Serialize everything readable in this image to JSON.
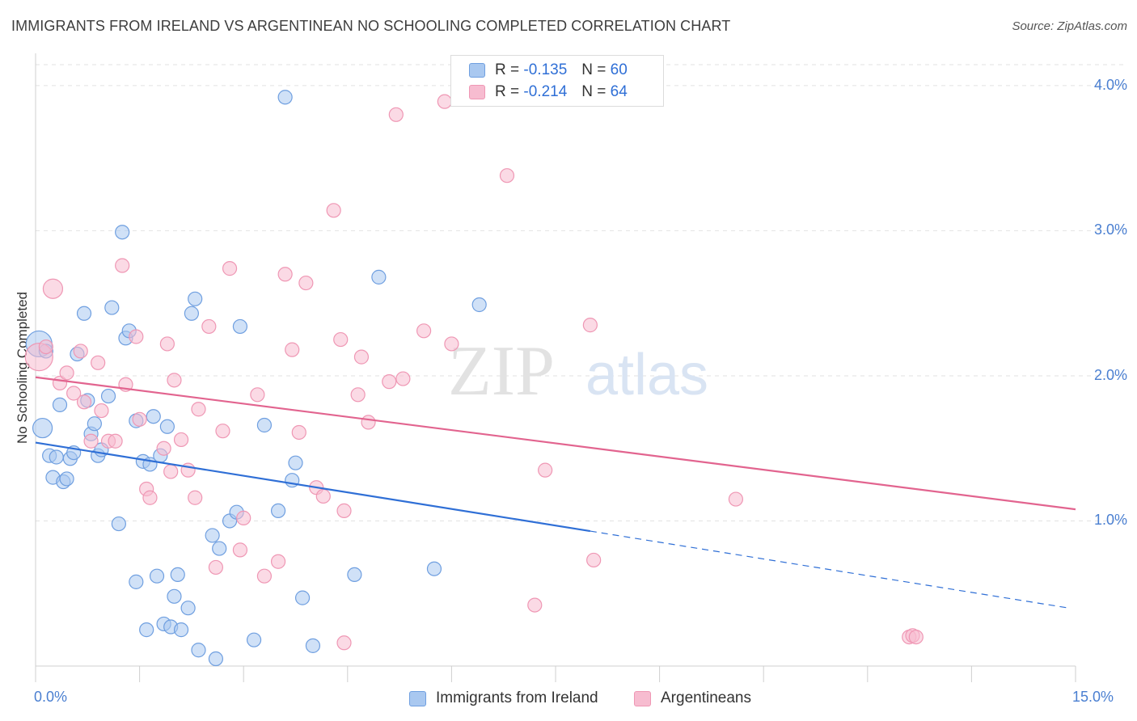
{
  "header": {
    "title": "IMMIGRANTS FROM IRELAND VS ARGENTINEAN NO SCHOOLING COMPLETED CORRELATION CHART",
    "source": "Source: ZipAtlas.com"
  },
  "watermark": {
    "zip": "ZIP",
    "atlas": "atlas"
  },
  "legend_top": {
    "r_label": "R =",
    "n_label": "N =",
    "series1": {
      "r": "-0.135",
      "n": "60"
    },
    "series2": {
      "r": "-0.214",
      "n": "64"
    }
  },
  "colors": {
    "ireland_fill": "#a9c8f0",
    "ireland_stroke": "#6f9fe0",
    "ireland_line": "#2f6fd6",
    "argentina_fill": "#f7bcd0",
    "argentina_stroke": "#ef97b4",
    "argentina_line": "#e2648f",
    "axis_text": "#4a7fd1",
    "grid": "#e2e2e2"
  },
  "chart_data": {
    "type": "scatter",
    "title": "IMMIGRANTS FROM IRELAND VS ARGENTINEAN NO SCHOOLING COMPLETED CORRELATION CHART",
    "xlabel": "",
    "ylabel": "No Schooling Completed",
    "xlim": [
      0,
      15
    ],
    "ylim": [
      0,
      4.2
    ],
    "x_tick_labels": [
      "0.0%",
      "15.0%"
    ],
    "y_ticks": [
      1,
      2,
      3,
      4
    ],
    "y_tick_labels": [
      "1.0%",
      "2.0%",
      "3.0%",
      "4.0%"
    ],
    "grid": true,
    "legend_position": "bottom-center",
    "series": [
      {
        "name": "Immigrants from Ireland",
        "r": -0.135,
        "n": 60,
        "trend": {
          "x0": 0,
          "y0": 1.54,
          "x1": 8.0,
          "y1": 0.93,
          "dashed_to_x": 14.9,
          "dashed_to_y": 0.4
        },
        "points": [
          [
            0.05,
            2.22
          ],
          [
            0.1,
            1.64
          ],
          [
            0.15,
            2.17
          ],
          [
            0.2,
            1.45
          ],
          [
            0.25,
            1.3
          ],
          [
            0.3,
            1.44
          ],
          [
            0.35,
            1.8
          ],
          [
            0.4,
            1.27
          ],
          [
            0.45,
            1.29
          ],
          [
            0.5,
            1.43
          ],
          [
            0.55,
            1.47
          ],
          [
            0.6,
            2.15
          ],
          [
            0.7,
            2.43
          ],
          [
            0.75,
            1.83
          ],
          [
            0.8,
            1.6
          ],
          [
            0.85,
            1.67
          ],
          [
            0.9,
            1.45
          ],
          [
            0.95,
            1.49
          ],
          [
            1.05,
            1.86
          ],
          [
            1.1,
            2.47
          ],
          [
            1.2,
            0.98
          ],
          [
            1.25,
            2.99
          ],
          [
            1.3,
            2.26
          ],
          [
            1.35,
            2.31
          ],
          [
            1.45,
            1.69
          ],
          [
            1.45,
            0.58
          ],
          [
            1.55,
            1.41
          ],
          [
            1.6,
            0.25
          ],
          [
            1.65,
            1.39
          ],
          [
            1.7,
            1.72
          ],
          [
            1.75,
            0.62
          ],
          [
            1.8,
            1.45
          ],
          [
            1.85,
            0.29
          ],
          [
            1.9,
            1.65
          ],
          [
            1.95,
            0.27
          ],
          [
            2.0,
            0.48
          ],
          [
            2.05,
            0.63
          ],
          [
            2.1,
            0.25
          ],
          [
            2.2,
            0.4
          ],
          [
            2.25,
            2.43
          ],
          [
            2.3,
            2.53
          ],
          [
            2.35,
            0.11
          ],
          [
            2.55,
            0.9
          ],
          [
            2.6,
            0.05
          ],
          [
            2.65,
            0.81
          ],
          [
            2.8,
            1.0
          ],
          [
            2.9,
            1.06
          ],
          [
            2.95,
            2.34
          ],
          [
            3.15,
            0.18
          ],
          [
            3.3,
            1.66
          ],
          [
            3.5,
            1.07
          ],
          [
            3.6,
            3.92
          ],
          [
            3.7,
            1.28
          ],
          [
            3.75,
            1.4
          ],
          [
            3.85,
            0.47
          ],
          [
            4.0,
            0.14
          ],
          [
            4.6,
            0.63
          ],
          [
            4.95,
            2.68
          ],
          [
            5.75,
            0.67
          ],
          [
            6.4,
            2.49
          ]
        ]
      },
      {
        "name": "Argentineans",
        "r": -0.214,
        "n": 64,
        "trend": {
          "x0": 0,
          "y0": 1.99,
          "x1": 15.0,
          "y1": 1.08
        },
        "points": [
          [
            0.05,
            2.13
          ],
          [
            0.15,
            2.2
          ],
          [
            0.25,
            2.6
          ],
          [
            0.35,
            1.95
          ],
          [
            0.45,
            2.02
          ],
          [
            0.55,
            1.88
          ],
          [
            0.65,
            2.17
          ],
          [
            0.7,
            1.82
          ],
          [
            0.8,
            1.55
          ],
          [
            0.9,
            2.09
          ],
          [
            0.95,
            1.76
          ],
          [
            1.05,
            1.55
          ],
          [
            1.15,
            1.55
          ],
          [
            1.25,
            2.76
          ],
          [
            1.3,
            1.94
          ],
          [
            1.45,
            2.27
          ],
          [
            1.5,
            1.7
          ],
          [
            1.6,
            1.22
          ],
          [
            1.65,
            1.16
          ],
          [
            1.85,
            1.5
          ],
          [
            1.9,
            2.22
          ],
          [
            1.95,
            1.34
          ],
          [
            2.0,
            1.97
          ],
          [
            2.1,
            1.56
          ],
          [
            2.2,
            1.35
          ],
          [
            2.3,
            1.16
          ],
          [
            2.35,
            1.77
          ],
          [
            2.5,
            2.34
          ],
          [
            2.6,
            0.68
          ],
          [
            2.7,
            1.62
          ],
          [
            2.8,
            2.74
          ],
          [
            2.95,
            0.8
          ],
          [
            3.0,
            1.02
          ],
          [
            3.2,
            1.87
          ],
          [
            3.3,
            0.62
          ],
          [
            3.5,
            0.72
          ],
          [
            3.6,
            2.7
          ],
          [
            3.7,
            2.18
          ],
          [
            3.8,
            1.61
          ],
          [
            3.9,
            2.64
          ],
          [
            4.05,
            1.23
          ],
          [
            4.15,
            1.17
          ],
          [
            4.3,
            3.14
          ],
          [
            4.4,
            2.25
          ],
          [
            4.45,
            1.07
          ],
          [
            4.45,
            0.16
          ],
          [
            4.65,
            1.87
          ],
          [
            4.7,
            2.13
          ],
          [
            4.8,
            1.68
          ],
          [
            5.1,
            1.96
          ],
          [
            5.2,
            3.8
          ],
          [
            5.3,
            1.98
          ],
          [
            5.6,
            2.31
          ],
          [
            5.9,
            3.89
          ],
          [
            6.0,
            2.22
          ],
          [
            6.8,
            3.38
          ],
          [
            7.2,
            0.42
          ],
          [
            7.35,
            1.35
          ],
          [
            8.0,
            2.35
          ],
          [
            8.05,
            0.73
          ],
          [
            10.1,
            1.15
          ],
          [
            12.6,
            0.2
          ],
          [
            12.65,
            0.21
          ],
          [
            12.7,
            0.2
          ]
        ]
      }
    ]
  },
  "bottom_legend": {
    "item1": "Immigrants from Ireland",
    "item2": "Argentineans"
  }
}
